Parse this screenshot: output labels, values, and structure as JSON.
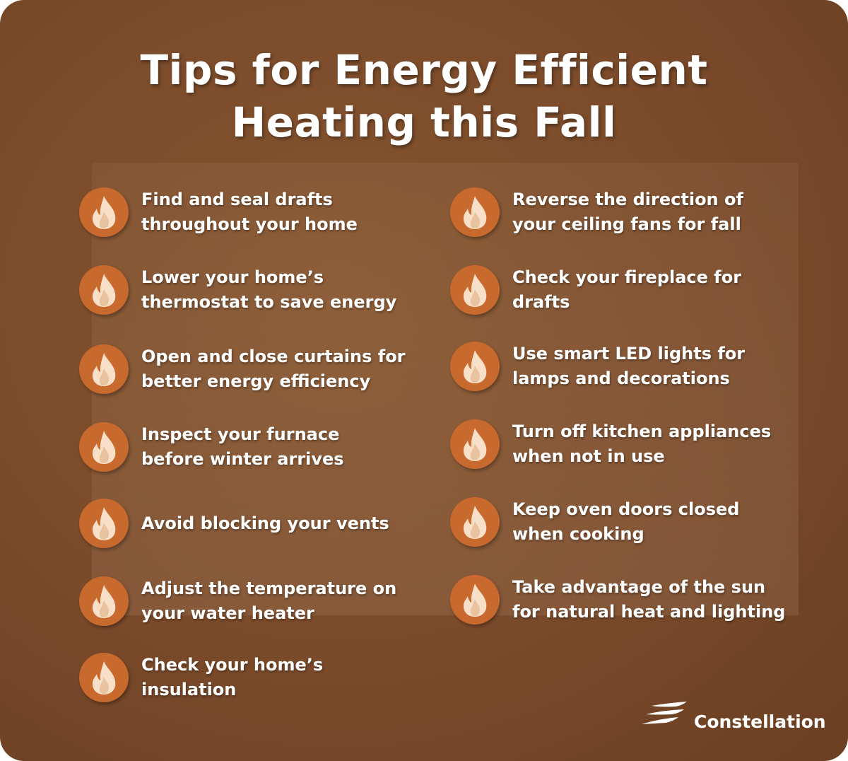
{
  "title_lines": [
    "Tips for Energy Efficient",
    "Heating this Fall"
  ],
  "colors": {
    "background": "#7a4a2a",
    "icon_circle": "#c8692e",
    "flame": "#f8e0c8",
    "text": "#ffffff"
  },
  "icon": "flame-icon",
  "left_tips": [
    "Find and seal drafts\nthroughout your home",
    "Lower your home’s\nthermostat to save energy",
    "Open and close curtains for\nbetter energy efficiency",
    "Inspect your furnace\nbefore winter arrives",
    "Avoid blocking your vents",
    "Adjust the temperature on\nyour water heater",
    "Check your home’s\ninsulation"
  ],
  "right_tips": [
    "Reverse the direction of\nyour ceiling fans for fall",
    "Check your fireplace for\ndrafts",
    "Use smart LED lights for\nlamps and decorations",
    "Turn off kitchen appliances\nwhen not in use",
    "Keep oven doors closed\nwhen cooking",
    "Take advantage of the sun\nfor natural heat and lighting"
  ],
  "logo": {
    "text": "Constellation"
  }
}
